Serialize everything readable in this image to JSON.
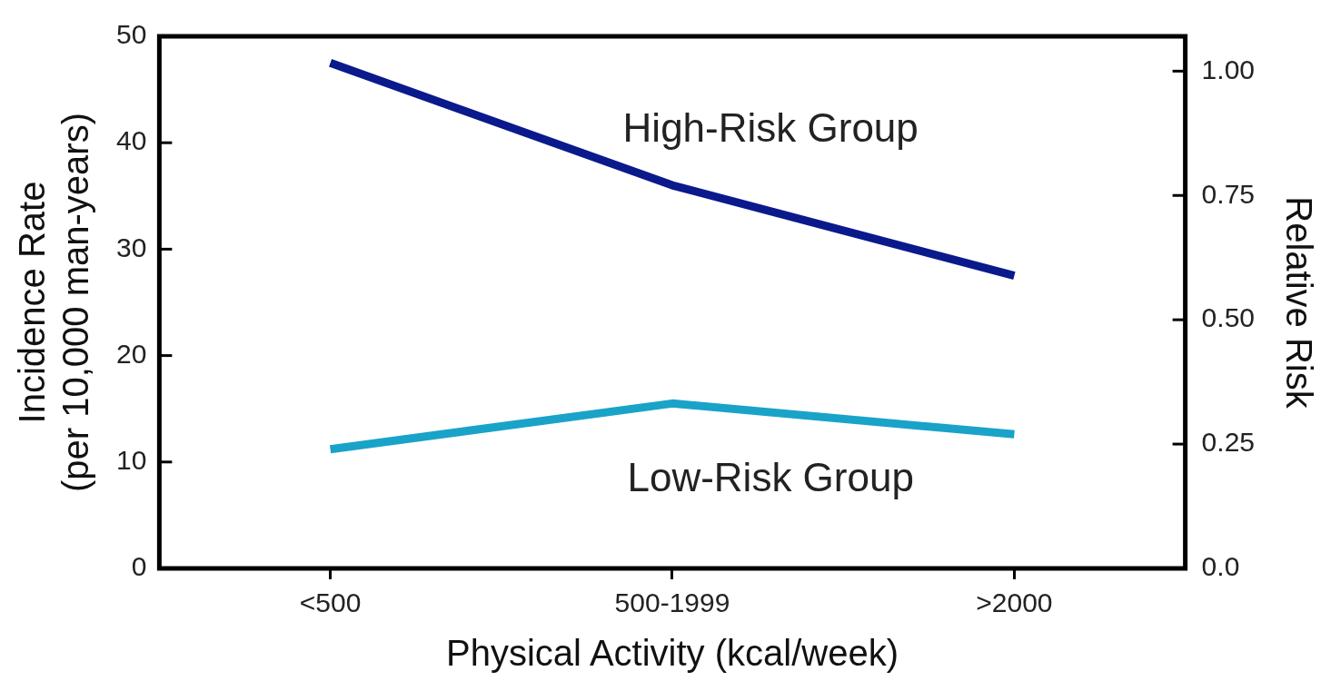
{
  "chart_data": {
    "type": "line",
    "xlabel": "Physical Activity (kcal/week)",
    "ylabel": "Incidence Rate\n(per 10,000 man-years)",
    "y2label": "Relative Risk",
    "categories": [
      "<500",
      "500-1999",
      ">2000"
    ],
    "series": [
      {
        "name": "High-Risk Group",
        "color": "#0a1a8c",
        "values": [
          47.5,
          36,
          27.5
        ]
      },
      {
        "name": "Low-Risk Group",
        "color": "#1aa3c8",
        "values": [
          11.2,
          15.5,
          12.6
        ]
      }
    ],
    "ylim": [
      0,
      50
    ],
    "yticks": [
      0,
      10,
      20,
      30,
      40,
      50
    ],
    "y2lim": [
      0,
      1.07
    ],
    "y2ticks": [
      {
        "value": 0,
        "label": "0.0"
      },
      0.25,
      {
        "value": 0.5,
        "label": "0.50"
      },
      0.75,
      {
        "value": 1,
        "label": "1.00"
      }
    ],
    "grid": false,
    "legend": false,
    "marker": "none",
    "line_style": "solid"
  }
}
